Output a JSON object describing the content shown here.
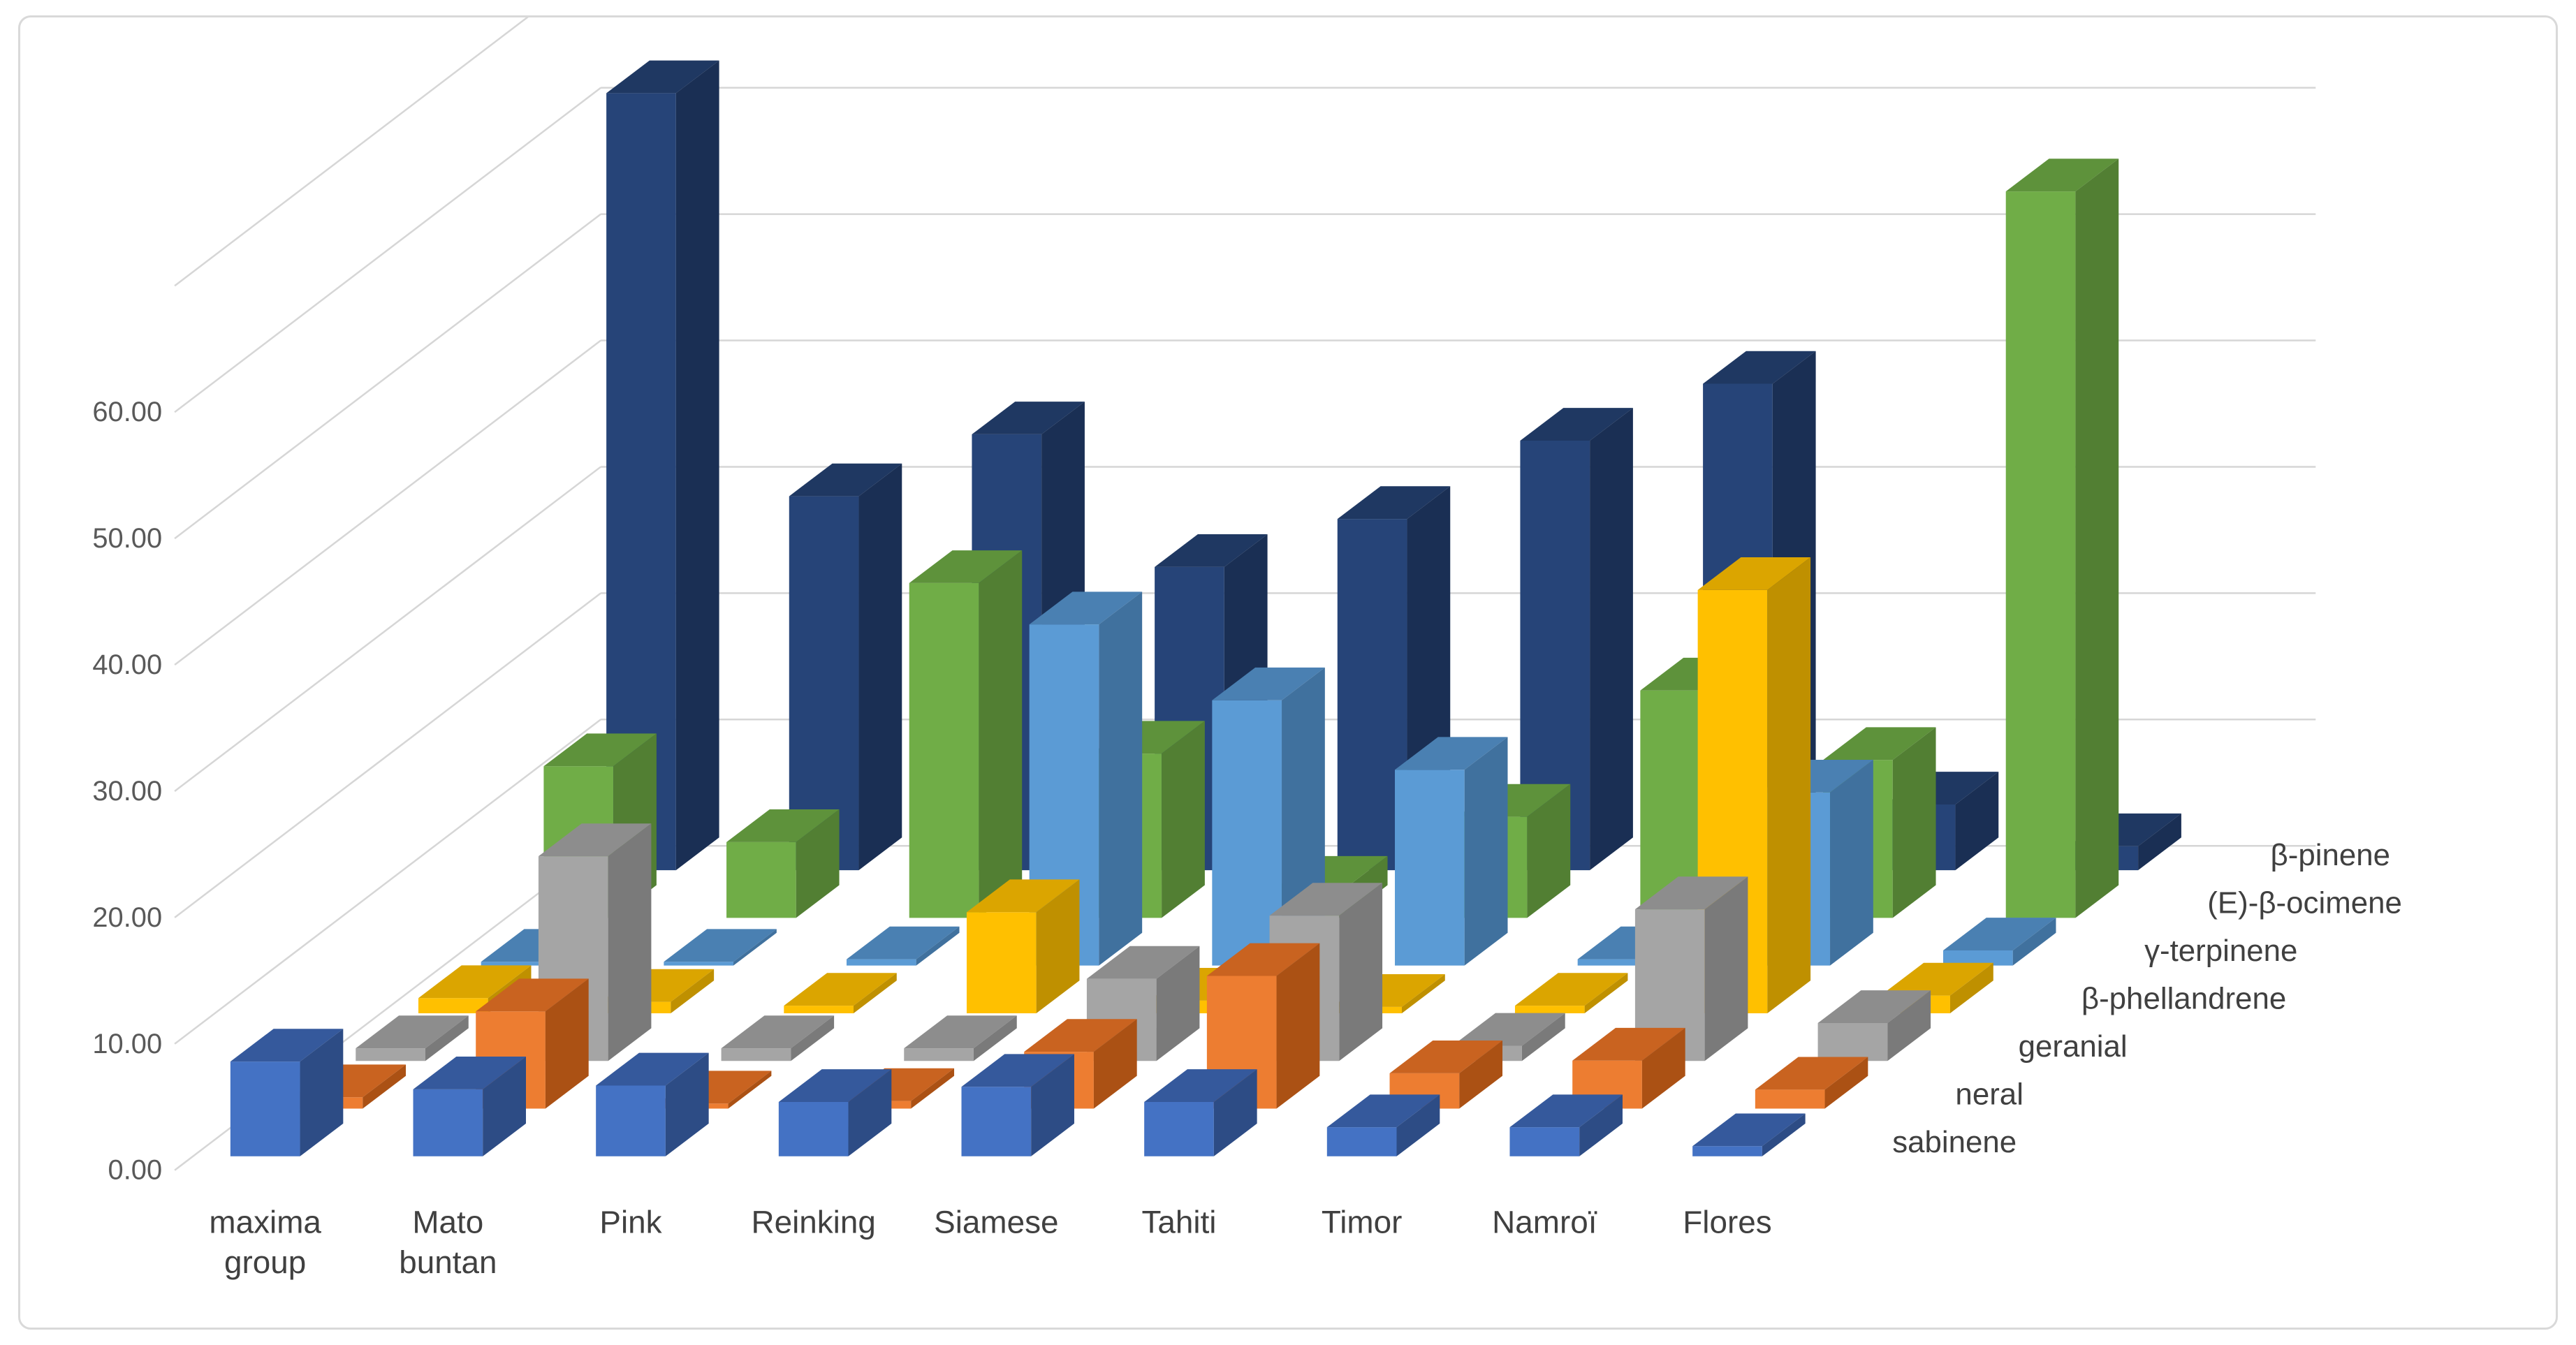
{
  "chart_data": {
    "type": "bar",
    "subtype": "3d-column",
    "title": "",
    "categories": [
      "maxima group",
      "Mato buntan",
      "Pink",
      "Reinking",
      "Siamese",
      "Tahiti",
      "Timor",
      "Namroï",
      "Flores"
    ],
    "category_label_lines": [
      [
        "maxima",
        "group"
      ],
      [
        "Mato",
        "buntan"
      ],
      [
        "Pink"
      ],
      [
        "Reinking"
      ],
      [
        "Siamese"
      ],
      [
        "Tahiti"
      ],
      [
        "Timor"
      ],
      [
        "Namroï"
      ],
      [
        "Flores"
      ]
    ],
    "series": [
      {
        "name": "sabinene",
        "color": "#4472C4",
        "top": "#35599c",
        "side": "#2d4c85",
        "values": [
          7.5,
          5.3,
          5.6,
          4.3,
          5.5,
          4.3,
          2.3,
          2.3,
          0.8
        ]
      },
      {
        "name": "neral",
        "color": "#ED7D31",
        "top": "#c96320",
        "side": "#ab5114",
        "values": [
          0.9,
          7.7,
          0.4,
          0.6,
          4.5,
          10.5,
          2.8,
          3.8,
          1.5
        ]
      },
      {
        "name": "geranial",
        "color": "#A5A5A5",
        "top": "#8d8d8d",
        "side": "#7a7a7a",
        "values": [
          1.0,
          16.2,
          1.0,
          1.0,
          6.5,
          11.5,
          1.2,
          12.0,
          3.0
        ]
      },
      {
        "name": "β-phellandrene",
        "color": "#FFC000",
        "top": "#dba500",
        "side": "#bf9000",
        "values": [
          1.2,
          0.9,
          0.6,
          8.0,
          1.0,
          0.5,
          0.6,
          33.5,
          1.4
        ]
      },
      {
        "name": "γ-terpinene",
        "color": "#5B9BD5",
        "top": "#4a80b2",
        "side": "#40719e",
        "values": [
          0.3,
          0.3,
          0.5,
          27.0,
          21.0,
          15.5,
          0.5,
          13.7,
          1.2
        ]
      },
      {
        "name": "(E)-β-ocimene",
        "color": "#70AD47",
        "top": "#5e923b",
        "side": "#527f33",
        "values": [
          12.0,
          6.0,
          26.5,
          13.0,
          2.3,
          8.0,
          18.0,
          12.5,
          57.5
        ]
      },
      {
        "name": "β-pinene",
        "color": "#264478",
        "top": "#1f3862",
        "side": "#1a2f54",
        "values": [
          61.5,
          29.6,
          34.5,
          24.0,
          27.8,
          34.0,
          38.5,
          5.2,
          1.9
        ]
      }
    ],
    "yaxis": {
      "min": 0,
      "labeled_max": 60,
      "wall_max": 70,
      "tick_step": 10,
      "tick_labels": [
        "0.00",
        "10.00",
        "20.00",
        "30.00",
        "40.00",
        "50.00",
        "60.00"
      ]
    },
    "grid": true,
    "legend_position": "depth-axis-right",
    "grid_color": "#d6d6d6",
    "text_color": "#595959",
    "category_text_color": "#404040"
  }
}
